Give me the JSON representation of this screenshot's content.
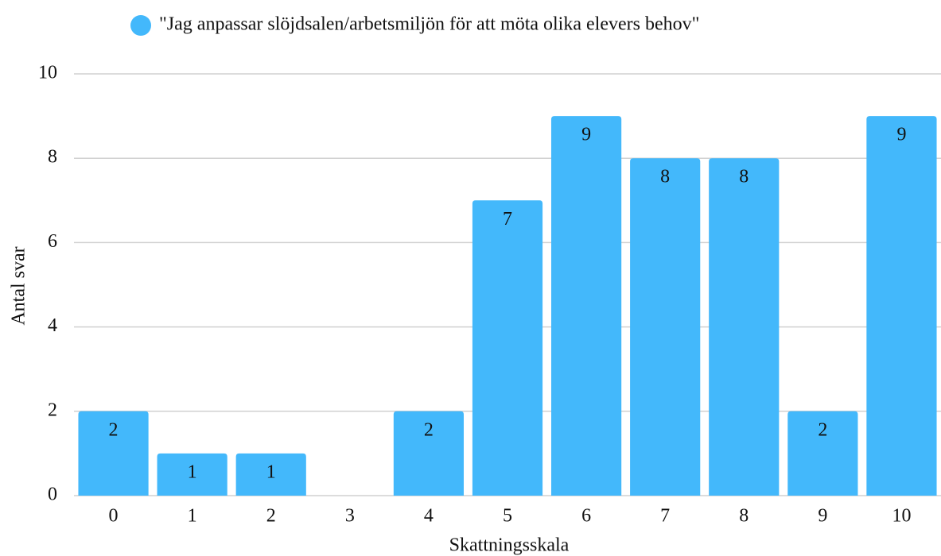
{
  "chart_data": {
    "type": "bar",
    "legend": "\"Jag anpassar slöjdsalen/arbetsmiljön för att möta olika elevers behov\"",
    "x_label": "Skattningsskala",
    "y_label": "Antal svar",
    "categories": [
      "0",
      "1",
      "2",
      "3",
      "4",
      "5",
      "6",
      "7",
      "8",
      "9",
      "10"
    ],
    "values": [
      2,
      1,
      1,
      0,
      2,
      7,
      9,
      8,
      8,
      2,
      9
    ],
    "color": "#43b8fb",
    "ylim": [
      0,
      10
    ],
    "yticks": [
      0,
      2,
      4,
      6,
      8,
      10
    ],
    "grid": true
  }
}
